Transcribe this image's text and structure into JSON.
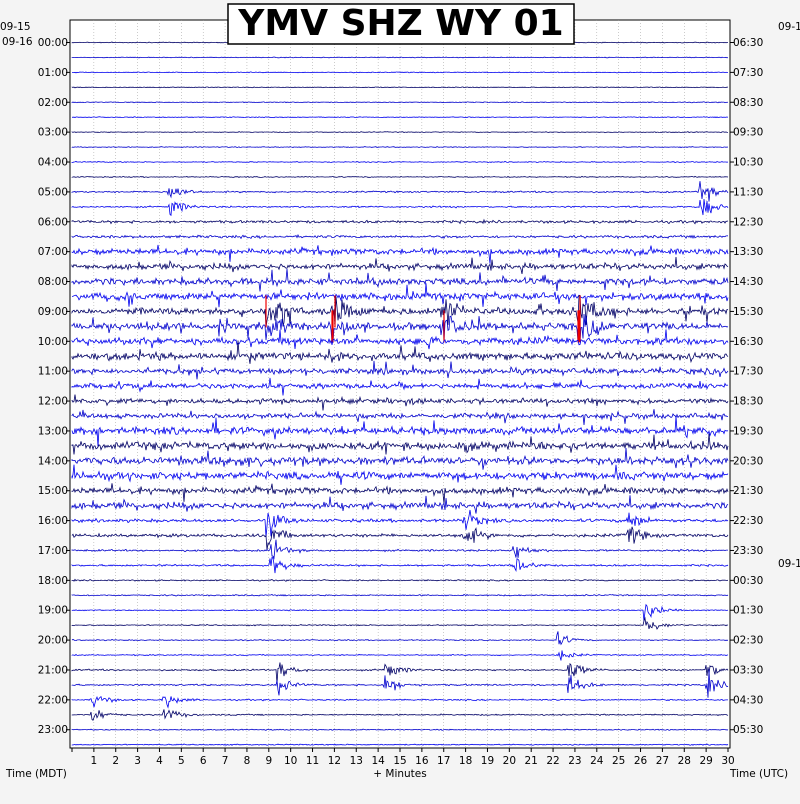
{
  "chart_data": {
    "type": "line",
    "title": "YMV SHZ WY 01",
    "xlabel": "+ Minutes",
    "ylabel_left": "Time (MDT)",
    "ylabel_right": "Time (UTC)",
    "date_left_top": "09-15",
    "date_left": "09-16",
    "date_right_top": "09-1",
    "date_right_mid": "09-1",
    "x_ticks": [
      "1",
      "2",
      "3",
      "4",
      "5",
      "6",
      "7",
      "8",
      "9",
      "10",
      "11",
      "12",
      "13",
      "14",
      "15",
      "16",
      "17",
      "18",
      "19",
      "20",
      "21",
      "22",
      "23",
      "24",
      "25",
      "26",
      "27",
      "28",
      "29",
      "30"
    ],
    "xlim": [
      0,
      30
    ],
    "trace_colors": [
      "#000066",
      "#0000cc",
      "#0000ee"
    ],
    "clip_color": "#ee0000",
    "rows": [
      {
        "left": "00:00",
        "right": "06:30"
      },
      {
        "left": "01:00",
        "right": "07:30"
      },
      {
        "left": "02:00",
        "right": "08:30"
      },
      {
        "left": "03:00",
        "right": "09:30"
      },
      {
        "left": "04:00",
        "right": "10:30"
      },
      {
        "left": "05:00",
        "right": "11:30"
      },
      {
        "left": "06:00",
        "right": "12:30"
      },
      {
        "left": "07:00",
        "right": "13:30"
      },
      {
        "left": "08:00",
        "right": "14:30"
      },
      {
        "left": "09:00",
        "right": "15:30"
      },
      {
        "left": "10:00",
        "right": "16:30"
      },
      {
        "left": "11:00",
        "right": "17:30"
      },
      {
        "left": "12:00",
        "right": "18:30"
      },
      {
        "left": "13:00",
        "right": "19:30"
      },
      {
        "left": "14:00",
        "right": "20:30"
      },
      {
        "left": "15:00",
        "right": "21:30"
      },
      {
        "left": "16:00",
        "right": "22:30"
      },
      {
        "left": "17:00",
        "right": "23:30"
      },
      {
        "left": "18:00",
        "right": "00:30"
      },
      {
        "left": "19:00",
        "right": "01:30"
      },
      {
        "left": "20:00",
        "right": "02:30"
      },
      {
        "left": "21:00",
        "right": "03:30"
      },
      {
        "left": "22:00",
        "right": "04:30"
      },
      {
        "left": "23:00",
        "right": "05:30"
      }
    ],
    "noise_by_hour": [
      0.3,
      0.3,
      0.3,
      0.3,
      0.35,
      0.6,
      1.0,
      2.2,
      2.5,
      2.6,
      2.6,
      2.0,
      1.8,
      2.8,
      2.8,
      2.4,
      1.2,
      0.7,
      0.5,
      0.4,
      0.4,
      0.6,
      0.5,
      0.4
    ],
    "events": [
      {
        "hour": 5,
        "min": 4.5,
        "amp": 8
      },
      {
        "hour": 5,
        "min": 28.8,
        "amp": 10
      },
      {
        "hour": 9,
        "min": 9.0,
        "amp": 12
      },
      {
        "hour": 9,
        "min": 12.0,
        "amp": 14
      },
      {
        "hour": 9,
        "min": 17.0,
        "amp": 12
      },
      {
        "hour": 9,
        "min": 23.2,
        "amp": 16
      },
      {
        "hour": 16,
        "min": 9.0,
        "amp": 10
      },
      {
        "hour": 16,
        "min": 18.0,
        "amp": 9
      },
      {
        "hour": 16,
        "min": 25.5,
        "amp": 8
      },
      {
        "hour": 17,
        "min": 9.2,
        "amp": 8
      },
      {
        "hour": 17,
        "min": 20.3,
        "amp": 7
      },
      {
        "hour": 19,
        "min": 26.3,
        "amp": 8
      },
      {
        "hour": 20,
        "min": 22.3,
        "amp": 5
      },
      {
        "hour": 21,
        "min": 9.5,
        "amp": 7
      },
      {
        "hour": 21,
        "min": 14.4,
        "amp": 8
      },
      {
        "hour": 21,
        "min": 22.8,
        "amp": 8
      },
      {
        "hour": 21,
        "min": 29.1,
        "amp": 8
      },
      {
        "hour": 22,
        "min": 1.0,
        "amp": 6
      },
      {
        "hour": 22,
        "min": 4.3,
        "amp": 6
      }
    ]
  }
}
